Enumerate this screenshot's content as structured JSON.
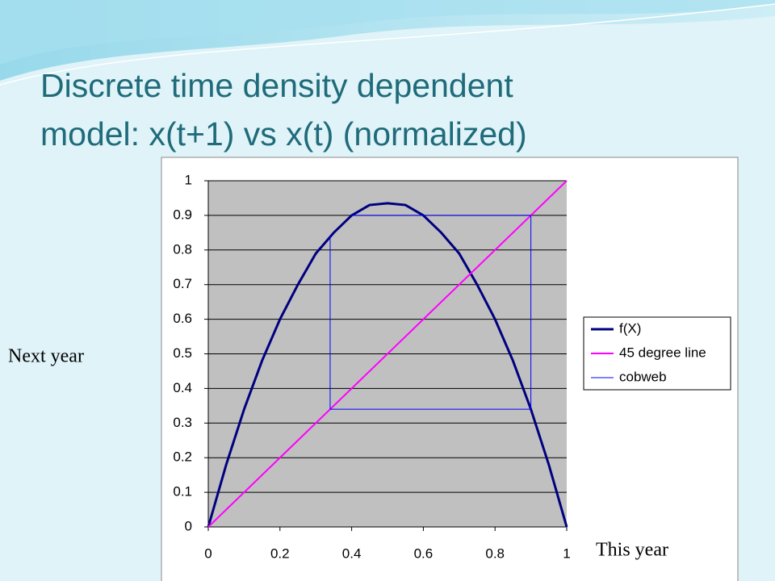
{
  "chart_data": {
    "type": "line",
    "title": "Discrete time density dependent model: x(t+1) vs x(t) (normalized)",
    "x_label": "This year",
    "y_label": "Next year",
    "xlim": [
      0,
      1
    ],
    "ylim": [
      0,
      1
    ],
    "xticks": [
      0,
      0.2,
      0.4,
      0.6,
      0.8,
      1
    ],
    "yticks": [
      0,
      0.1,
      0.2,
      0.3,
      0.4,
      0.5,
      0.6,
      0.7,
      0.8,
      0.9,
      1
    ],
    "grid": true,
    "legend": "right",
    "series": [
      {
        "name": "f(X)",
        "color": "#000080",
        "x": [
          0,
          0.05,
          0.1,
          0.15,
          0.2,
          0.25,
          0.3,
          0.35,
          0.4,
          0.45,
          0.5,
          0.55,
          0.6,
          0.65,
          0.7,
          0.75,
          0.8,
          0.85,
          0.9,
          0.95,
          1
        ],
        "values": [
          0,
          0.18,
          0.34,
          0.48,
          0.6,
          0.7,
          0.79,
          0.85,
          0.9,
          0.93,
          0.935,
          0.93,
          0.9,
          0.85,
          0.79,
          0.7,
          0.6,
          0.48,
          0.34,
          0.18,
          0
        ]
      },
      {
        "name": "45 degree line",
        "color": "#ff00ff",
        "x": [
          0,
          1
        ],
        "values": [
          0,
          1
        ]
      },
      {
        "name": "cobweb",
        "color": "#0000ff",
        "x": [
          0.34,
          0.34,
          0.9,
          0.9,
          0.4
        ],
        "values": [
          0.84,
          0.34,
          0.34,
          0.9,
          0.9
        ]
      }
    ]
  }
}
